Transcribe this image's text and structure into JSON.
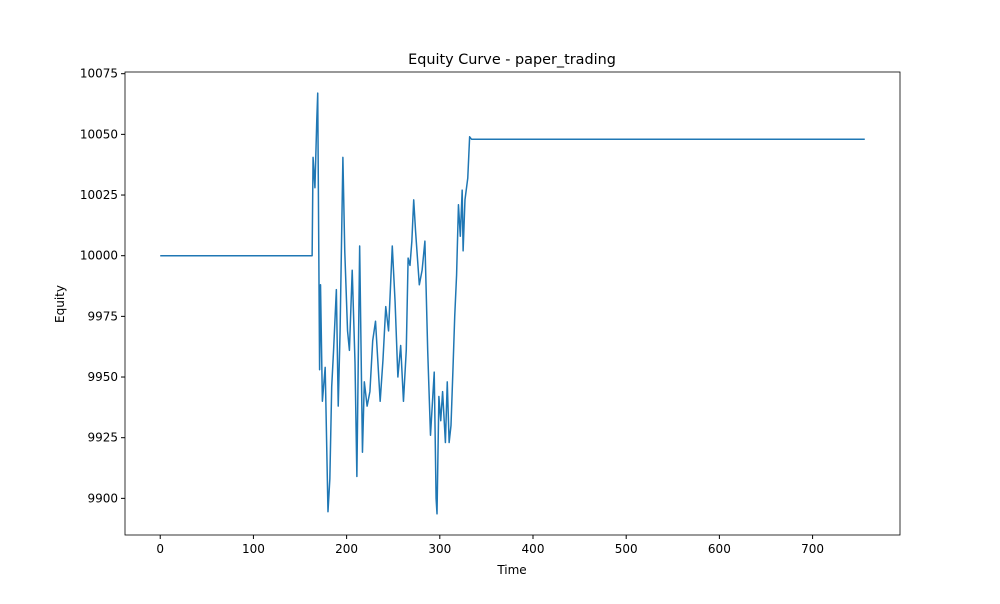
{
  "chart_data": {
    "type": "line",
    "title": "Equity Curve - paper_trading",
    "x_label": "Time",
    "y_label": "Equity",
    "x": [
      0,
      163,
      164,
      166,
      168,
      169,
      171,
      172,
      174,
      177,
      180,
      182,
      184,
      186,
      189,
      191,
      193,
      196,
      198,
      201,
      203,
      206,
      209,
      211,
      214,
      217,
      219,
      222,
      225,
      228,
      231,
      236,
      239,
      242,
      245,
      249,
      252,
      255,
      258,
      261,
      264,
      266,
      268,
      270,
      272,
      274,
      278,
      281,
      284,
      287,
      290,
      294,
      296,
      297,
      299,
      301,
      303,
      306,
      308,
      310,
      312,
      314,
      316,
      318,
      320,
      322,
      324,
      325,
      327,
      330,
      332,
      334,
      756
    ],
    "values": [
      10000,
      10000,
      10040.5,
      10028,
      10056,
      10067,
      9953,
      9988,
      9940,
      9954,
      9894.5,
      9908,
      9946,
      9961,
      9986,
      9938,
      9969,
      10040.5,
      10002,
      9969,
      9961,
      9994,
      9956,
      9909,
      10004,
      9919,
      9948,
      9938,
      9944,
      9965,
      9973,
      9940,
      9957,
      9979,
      9969,
      10004,
      9981,
      9950,
      9963,
      9940,
      9961,
      9999,
      9996,
      10006,
      10023,
      10010,
      9988,
      9994,
      10006,
      9961,
      9926,
      9952,
      9900,
      9893.6,
      9942,
      9932,
      9944,
      9923,
      9948,
      9923,
      9930,
      9952,
      9975,
      9992,
      10021,
      10008,
      10027,
      10002,
      10023,
      10032,
      10049,
      10048,
      10048
    ],
    "color": "#1f77b4",
    "xlim": [
      -37.8,
      793.8
    ],
    "xticks": [
      0,
      100,
      200,
      300,
      400,
      500,
      600,
      700
    ],
    "ylim": [
      9884.9,
      10075.7
    ],
    "yticks": [
      9900,
      9925,
      9950,
      9975,
      10000,
      10025,
      10050,
      10075
    ]
  }
}
